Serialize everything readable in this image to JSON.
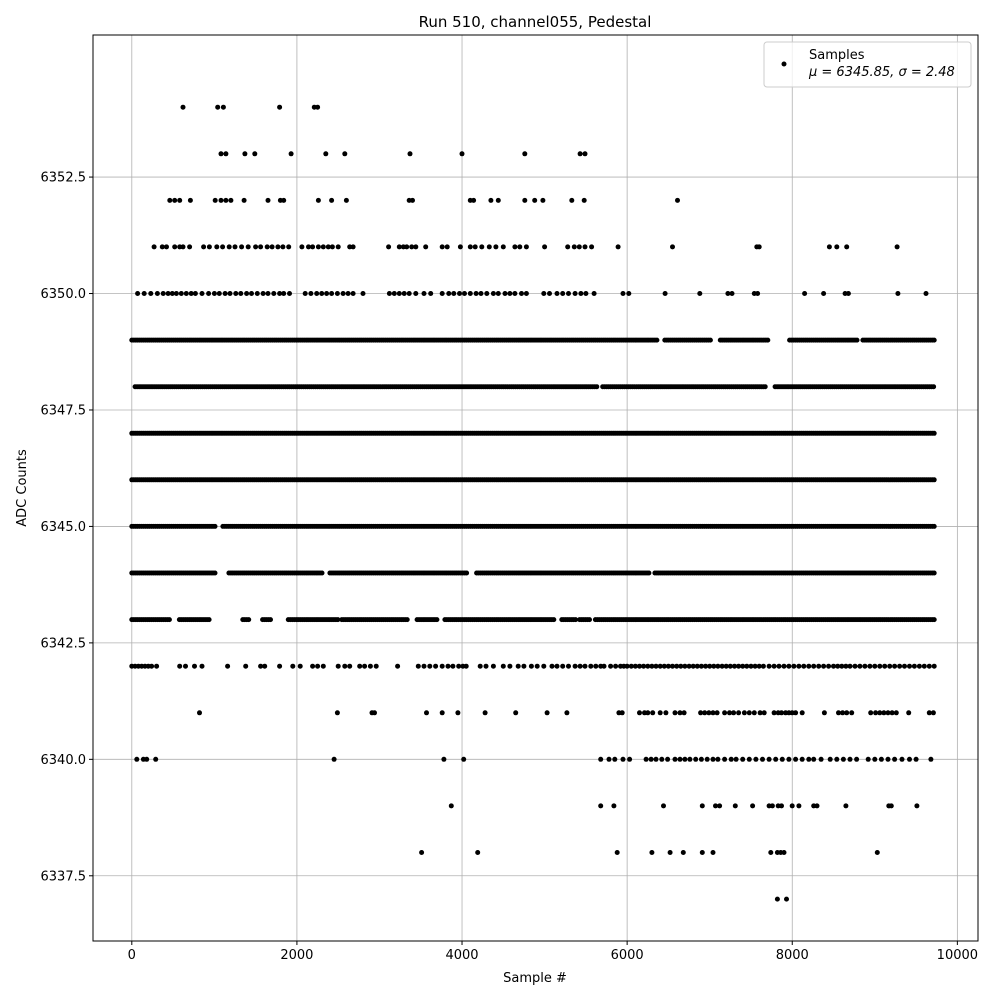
{
  "chart_data": {
    "type": "scatter",
    "title": "Run 510, channel055, Pedestal",
    "xlabel": "Sample #",
    "ylabel": "ADC Counts",
    "xlim": [
      -470,
      10250
    ],
    "ylim": [
      6336.1,
      6355.55
    ],
    "x_ticks": [
      0,
      2000,
      4000,
      6000,
      8000,
      10000
    ],
    "x_tick_labels": [
      "0",
      "2000",
      "4000",
      "6000",
      "8000",
      "10000"
    ],
    "y_ticks": [
      6337.5,
      6340.0,
      6342.5,
      6345.0,
      6347.5,
      6350.0,
      6352.5
    ],
    "y_tick_labels": [
      "6337.5",
      "6340.0",
      "6342.5",
      "6345.0",
      "6347.5",
      "6350.0",
      "6352.5"
    ],
    "grid": true,
    "legend": {
      "placement": "top-right",
      "entries": [
        {
          "label": "Samples",
          "stats": "μ = 6345.85, σ = 2.48",
          "color": "#000000",
          "marker": "circle"
        }
      ]
    },
    "series": [
      {
        "name": "Samples",
        "color": "#000000",
        "mean": 6345.85,
        "sigma": 2.48,
        "x_max": 9720,
        "points_description": "integer ADC values per sample; dense bands at 6342-6349",
        "levels": [
          {
            "y": 6354,
            "x": [
              620,
              1040,
              1110,
              1790,
              2210,
              2250
            ]
          },
          {
            "y": 6353,
            "x": [
              1080,
              1140,
              1370,
              1490,
              1930,
              2350,
              2580,
              3370,
              4000,
              4760,
              5430,
              5490
            ]
          },
          {
            "y": 6352,
            "x": [
              460,
              520,
              580,
              710,
              1010,
              1080,
              1140,
              1200,
              1360,
              1650,
              1800,
              1840,
              2260,
              2420,
              2600,
              3360,
              3400,
              4100,
              4140,
              4350,
              4440,
              4760,
              4880,
              4980,
              5330,
              5480,
              6610
            ]
          },
          {
            "y": 6351,
            "x": [
              270,
              370,
              420,
              520,
              580,
              620,
              700,
              870,
              940,
              1030,
              1100,
              1180,
              1250,
              1330,
              1410,
              1500,
              1560,
              1640,
              1700,
              1770,
              1830,
              1900,
              2060,
              2140,
              2190,
              2260,
              2320,
              2380,
              2430,
              2500,
              2640,
              2680,
              3110,
              3240,
              3290,
              3330,
              3390,
              3440,
              3560,
              3760,
              3820,
              3980,
              4100,
              4160,
              4240,
              4330,
              4410,
              4500,
              4640,
              4700,
              4780,
              5000,
              5280,
              5360,
              5420,
              5490,
              5570,
              5890,
              6550,
              7570,
              7600,
              8450,
              8540,
              8660,
              9270
            ]
          },
          {
            "y": 6350,
            "x": [
              70,
              150,
              230,
              310,
              380,
              440,
              490,
              540,
              600,
              660,
              720,
              770,
              850,
              930,
              1000,
              1060,
              1130,
              1190,
              1260,
              1320,
              1390,
              1450,
              1520,
              1590,
              1650,
              1720,
              1790,
              1840,
              1910,
              2100,
              2170,
              2240,
              2300,
              2360,
              2420,
              2490,
              2560,
              2620,
              2680,
              2800,
              3120,
              3180,
              3240,
              3300,
              3360,
              3440,
              3540,
              3620,
              3760,
              3840,
              3900,
              3970,
              4030,
              4100,
              4170,
              4230,
              4300,
              4380,
              4440,
              4520,
              4580,
              4640,
              4720,
              4780,
              4990,
              5060,
              5150,
              5220,
              5290,
              5370,
              5440,
              5500,
              5600,
              5950,
              6020,
              6460,
              6880,
              7220,
              7270,
              7540,
              7580,
              8150,
              8380,
              8640,
              8680,
              9280,
              9620
            ]
          },
          {
            "y": 6349,
            "x_range": [
              0,
              9720
            ],
            "density": "dense",
            "gaps": [
              [
                6380,
                6450
              ],
              [
                7030,
                7110
              ],
              [
                7720,
                7960
              ],
              [
                8800,
                8840
              ]
            ]
          },
          {
            "y": 6348,
            "x_range": [
              40,
              9720
            ],
            "density": "dense",
            "gaps": [
              [
                5640,
                5680
              ],
              [
                7680,
                7780
              ]
            ]
          },
          {
            "y": 6347,
            "x_range": [
              0,
              9720
            ],
            "density": "dense",
            "gaps": []
          },
          {
            "y": 6346,
            "x_range": [
              0,
              9720
            ],
            "density": "dense",
            "gaps": []
          },
          {
            "y": 6345,
            "x_range": [
              0,
              9720
            ],
            "density": "dense",
            "gaps": [
              [
                1030,
                1090
              ]
            ]
          },
          {
            "y": 6344,
            "x_range": [
              0,
              9720
            ],
            "density": "dense",
            "gaps": [
              [
                1020,
                1160
              ],
              [
                2320,
                2380
              ],
              [
                4060,
                4160
              ],
              [
                6280,
                6320
              ]
            ]
          },
          {
            "y": 6343,
            "x_range": [
              0,
              9720
            ],
            "density": "dense",
            "gaps": [
              [
                460,
                560
              ],
              [
                960,
                1320
              ],
              [
                1440,
                1560
              ],
              [
                1700,
                1880
              ],
              [
                2500,
                2540
              ],
              [
                3350,
                3440
              ],
              [
                3700,
                3770
              ],
              [
                5120,
                5200
              ],
              [
                5380,
                5420
              ],
              [
                5560,
                5600
              ]
            ]
          },
          {
            "y": 6342,
            "x": [
              0,
              40,
              80,
              120,
              160,
              200,
              240,
              300,
              580,
              650,
              760,
              850,
              1160,
              1380,
              1560,
              1610,
              1790,
              1950,
              2040,
              2190,
              2250,
              2320,
              2500,
              2580,
              2640,
              2760,
              2820,
              2890,
              2960,
              3220,
              3470,
              3540,
              3610,
              3680,
              3760,
              3830,
              3890,
              3960,
              4010,
              4050,
              4220,
              4290,
              4380,
              4500,
              4580,
              4680,
              4750,
              4840,
              4910,
              4990,
              5090,
              5150,
              5220,
              5290,
              5370,
              5430,
              5490,
              5560,
              5620,
              5680,
              5720,
              5800,
              5860,
              5920,
              5960,
              6000,
              6050,
              6100,
              6150,
              6200,
              6250,
              6300,
              6350,
              6400,
              6450,
              6500,
              6550,
              6600,
              6650,
              6700,
              6750,
              6800,
              6850,
              6900,
              6950,
              7000,
              7050,
              7100,
              7150,
              7200,
              7250,
              7300,
              7350,
              7400,
              7450,
              7500,
              7550,
              7600,
              7650,
              7720,
              7780,
              7840,
              7900,
              7960,
              8020,
              8080,
              8140,
              8200,
              8260,
              8320,
              8380,
              8440,
              8500,
              8550,
              8600,
              8650,
              8700,
              8760,
              8820,
              8880,
              8940,
              9000,
              9060,
              9120,
              9180,
              9240,
              9300,
              9360,
              9420,
              9480,
              9540,
              9600,
              9660,
              9720
            ]
          },
          {
            "y": 6341,
            "x": [
              820,
              2490,
              2910,
              2940,
              3570,
              3760,
              3950,
              4280,
              4650,
              5030,
              5270,
              5900,
              5940,
              6150,
              6210,
              6250,
              6310,
              6400,
              6470,
              6580,
              6640,
              6690,
              6890,
              6940,
              6990,
              7040,
              7090,
              7180,
              7240,
              7290,
              7350,
              7420,
              7480,
              7540,
              7610,
              7660,
              7780,
              7830,
              7870,
              7920,
              7960,
              8000,
              8040,
              8120,
              8390,
              8560,
              8610,
              8660,
              8720,
              8950,
              9010,
              9060,
              9110,
              9160,
              9210,
              9260,
              9410,
              9660,
              9710
            ]
          },
          {
            "y": 6340,
            "x": [
              60,
              140,
              180,
              290,
              2450,
              3780,
              4020,
              5680,
              5780,
              5850,
              5950,
              6030,
              6230,
              6290,
              6350,
              6420,
              6490,
              6580,
              6640,
              6700,
              6760,
              6830,
              6900,
              6970,
              7040,
              7100,
              7180,
              7260,
              7320,
              7400,
              7480,
              7560,
              7640,
              7720,
              7800,
              7880,
              7960,
              8040,
              8120,
              8200,
              8260,
              8350,
              8460,
              8540,
              8620,
              8700,
              8780,
              8920,
              9000,
              9080,
              9160,
              9240,
              9330,
              9420,
              9500,
              9680
            ]
          },
          {
            "y": 6339,
            "x": [
              3870,
              5680,
              5840,
              6440,
              6910,
              7070,
              7120,
              7310,
              7520,
              7720,
              7760,
              7830,
              7870,
              8000,
              8080,
              8260,
              8300,
              8650,
              9170,
              9200,
              9510
            ]
          },
          {
            "y": 6338,
            "x": [
              3510,
              4190,
              5880,
              6300,
              6520,
              6680,
              6910,
              7040,
              7740,
              7820,
              7860,
              7900,
              9030
            ]
          },
          {
            "y": 6337,
            "x": [
              7820,
              7930
            ]
          }
        ]
      }
    ]
  }
}
